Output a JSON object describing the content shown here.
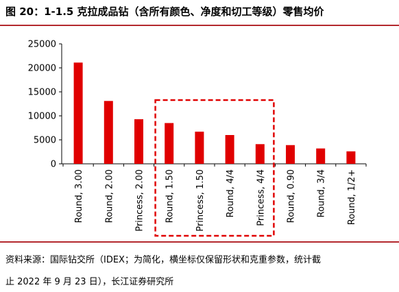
{
  "figure": {
    "title": "图 20：1-1.5 克拉成品钻（含所有颜色、净度和切工等级）零售均价",
    "source_line1": "资料来源：国际钻交所（IDEX；为简化，横坐标仅保留形状和克重参数，统计截",
    "source_line2": "止 2022 年 9 月 23 日），长江证券研究所"
  },
  "colors": {
    "bar": "#e00000",
    "highlight_box": "#e00000",
    "rule": "#b3282d"
  },
  "chart_data": {
    "type": "bar",
    "title": "",
    "xlabel": "",
    "ylabel": "",
    "categories": [
      "Round, 3.00",
      "Round, 2.00",
      "Princess, 2.00",
      "Round, 1.50",
      "Princess, 1.50",
      "Round, 4/4",
      "Princess, 4/4",
      "Round, 0.90",
      "Round, 3/4",
      "Round, 1/2+"
    ],
    "values": [
      21100,
      13100,
      9300,
      8500,
      6700,
      6000,
      4100,
      3900,
      3200,
      2600
    ],
    "ylim": [
      0,
      25000
    ],
    "yticks": [
      0,
      5000,
      10000,
      15000,
      20000,
      25000
    ],
    "ytick_labels": [
      "0",
      "5000",
      "10000",
      "15000",
      "20000",
      "25000"
    ],
    "grid": false,
    "legend": "none",
    "highlight_categories": [
      "Round, 1.50",
      "Princess, 1.50",
      "Round, 4/4",
      "Princess, 4/4"
    ]
  }
}
